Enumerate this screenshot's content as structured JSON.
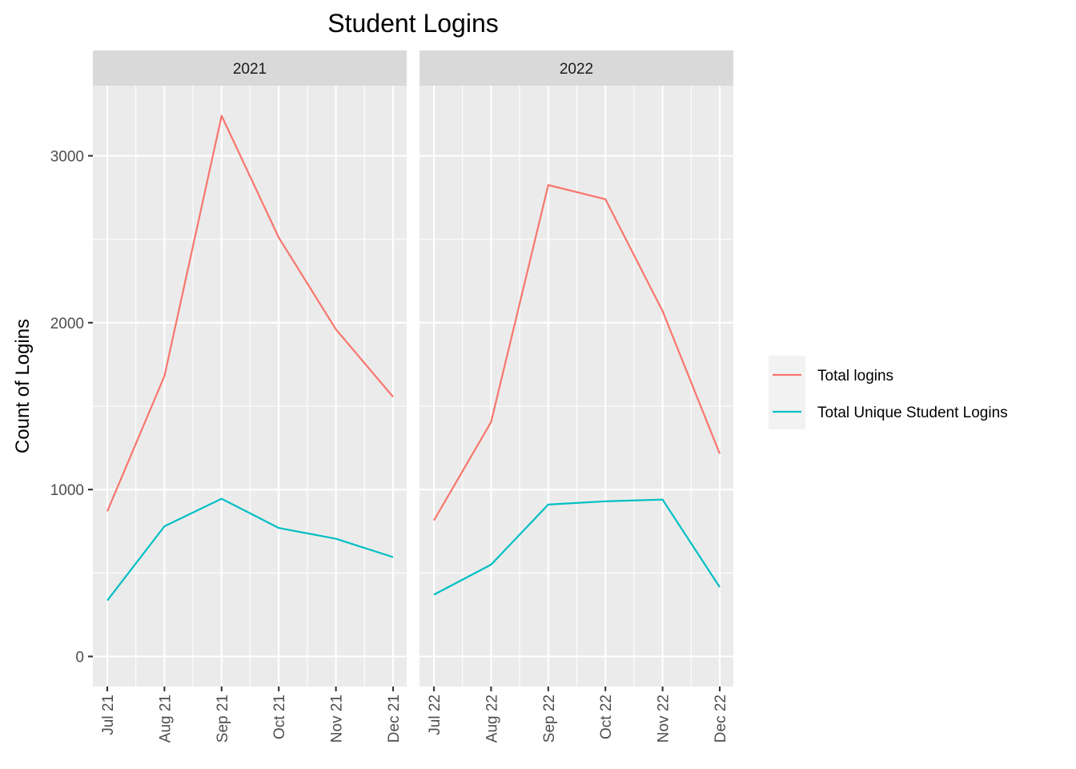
{
  "chart_data": {
    "type": "line",
    "title": "Student Logins",
    "ylabel": "Count of Logins",
    "xlabel": "",
    "ylim": [
      -180,
      3420
    ],
    "y_ticks": [
      0,
      1000,
      2000,
      3000
    ],
    "grid": true,
    "legend_position": "right",
    "colors": {
      "Total logins": "#F8766D",
      "Total Unique Student Logins": "#00BFC4"
    },
    "panels": [
      {
        "label": "2021",
        "x_ticks": [
          "Jul 21",
          "Aug 21",
          "Sep 21",
          "Oct 21",
          "Nov 21",
          "Dec 21"
        ],
        "series": [
          {
            "name": "Total logins",
            "values": [
              870,
              1680,
              3240,
              2510,
              1960,
              1555
            ]
          },
          {
            "name": "Total Unique Student Logins",
            "values": [
              335,
              780,
              945,
              770,
              705,
              595
            ]
          }
        ]
      },
      {
        "label": "2022",
        "x_ticks": [
          "Jul 22",
          "Aug 22",
          "Sep 22",
          "Oct 22",
          "Nov 22",
          "Dec 22"
        ],
        "series": [
          {
            "name": "Total logins",
            "values": [
              815,
              1405,
              2825,
              2740,
              2070,
              1215
            ]
          },
          {
            "name": "Total Unique Student Logins",
            "values": [
              370,
              550,
              910,
              930,
              940,
              415
            ]
          }
        ]
      }
    ],
    "legend": [
      "Total logins",
      "Total Unique Student Logins"
    ]
  }
}
